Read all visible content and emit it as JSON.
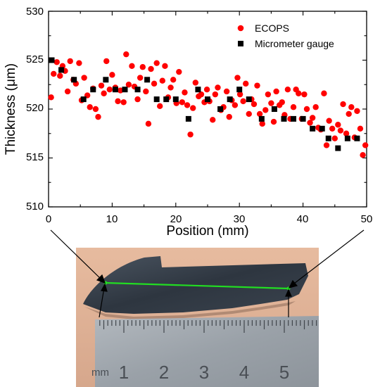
{
  "chart_data": {
    "type": "scatter",
    "xlabel": "Position (mm)",
    "ylabel": "Thickness (μm)",
    "xlim": [
      0,
      50
    ],
    "ylim": [
      510,
      530
    ],
    "xticks": [
      "0",
      "10",
      "20",
      "30",
      "40",
      "50"
    ],
    "yticks": [
      "510",
      "515",
      "520",
      "525",
      "530"
    ],
    "grid": false,
    "legend_position": "top-right",
    "series": [
      {
        "name": "ECOPS",
        "marker": "circle",
        "color": "#ff0000",
        "points": [
          [
            0.4,
            521.2
          ],
          [
            0.8,
            523.6
          ],
          [
            1.3,
            524.8
          ],
          [
            1.8,
            523.4
          ],
          [
            2.2,
            524.4
          ],
          [
            2.6,
            523.9
          ],
          [
            3.0,
            521.8
          ],
          [
            3.4,
            524.9
          ],
          [
            3.9,
            523.0
          ],
          [
            4.3,
            522.6
          ],
          [
            4.8,
            524.7
          ],
          [
            5.2,
            520.9
          ],
          [
            5.6,
            523.2
          ],
          [
            6.1,
            521.4
          ],
          [
            6.5,
            520.2
          ],
          [
            7.0,
            522.1
          ],
          [
            7.4,
            520.0
          ],
          [
            7.8,
            519.2
          ],
          [
            8.3,
            522.4
          ],
          [
            8.7,
            521.6
          ],
          [
            9.1,
            524.9
          ],
          [
            9.6,
            522.0
          ],
          [
            10.0,
            523.5
          ],
          [
            10.5,
            522.2
          ],
          [
            10.9,
            520.8
          ],
          [
            11.3,
            521.9
          ],
          [
            11.8,
            520.7
          ],
          [
            12.2,
            525.6
          ],
          [
            12.6,
            522.5
          ],
          [
            13.1,
            524.4
          ],
          [
            13.5,
            522.3
          ],
          [
            14.0,
            521.0
          ],
          [
            14.4,
            523.2
          ],
          [
            14.8,
            524.3
          ],
          [
            15.3,
            521.8
          ],
          [
            15.7,
            518.5
          ],
          [
            16.1,
            524.1
          ],
          [
            16.6,
            522.6
          ],
          [
            17.0,
            524.7
          ],
          [
            17.5,
            520.3
          ],
          [
            17.9,
            522.9
          ],
          [
            18.3,
            524.4
          ],
          [
            18.8,
            521.2
          ],
          [
            19.2,
            522.2
          ],
          [
            19.6,
            523.0
          ],
          [
            20.1,
            520.6
          ],
          [
            20.5,
            523.8
          ],
          [
            21.0,
            520.7
          ],
          [
            21.4,
            521.7
          ],
          [
            21.8,
            520.4
          ],
          [
            22.3,
            517.4
          ],
          [
            22.7,
            520.1
          ],
          [
            23.1,
            522.7
          ],
          [
            23.6,
            521.3
          ],
          [
            24.0,
            521.5
          ],
          [
            24.5,
            520.7
          ],
          [
            24.9,
            522.0
          ],
          [
            25.3,
            520.8
          ],
          [
            25.8,
            518.9
          ],
          [
            26.2,
            521.5
          ],
          [
            26.6,
            522.2
          ],
          [
            27.1,
            519.9
          ],
          [
            27.5,
            520.2
          ],
          [
            28.0,
            521.8
          ],
          [
            28.4,
            519.2
          ],
          [
            28.8,
            520.9
          ],
          [
            29.3,
            520.4
          ],
          [
            29.7,
            523.2
          ],
          [
            30.1,
            521.5
          ],
          [
            30.6,
            520.8
          ],
          [
            31.0,
            522.6
          ],
          [
            31.5,
            519.5
          ],
          [
            31.9,
            521.0
          ],
          [
            32.3,
            520.5
          ],
          [
            32.8,
            522.4
          ],
          [
            33.2,
            519.5
          ],
          [
            33.6,
            518.5
          ],
          [
            34.1,
            519.9
          ],
          [
            34.5,
            521.5
          ],
          [
            35.0,
            520.6
          ],
          [
            35.4,
            518.7
          ],
          [
            35.8,
            521.8
          ],
          [
            36.3,
            520.4
          ],
          [
            36.7,
            520.7
          ],
          [
            37.1,
            519.4
          ],
          [
            37.6,
            522.0
          ],
          [
            38.0,
            519.0
          ],
          [
            38.5,
            520.2
          ],
          [
            38.9,
            522.0
          ],
          [
            39.3,
            521.6
          ],
          [
            39.8,
            519.0
          ],
          [
            40.2,
            521.5
          ],
          [
            40.6,
            520.0
          ],
          [
            41.1,
            518.6
          ],
          [
            41.5,
            519.1
          ],
          [
            42.0,
            520.2
          ],
          [
            42.4,
            518.1
          ],
          [
            42.8,
            517.9
          ],
          [
            43.3,
            521.6
          ],
          [
            43.7,
            516.3
          ],
          [
            44.1,
            518.8
          ],
          [
            44.6,
            518.0
          ],
          [
            45.0,
            517.0
          ],
          [
            45.5,
            518.4
          ],
          [
            45.9,
            517.8
          ],
          [
            46.3,
            520.5
          ],
          [
            46.8,
            517.5
          ],
          [
            47.2,
            519.5
          ],
          [
            47.6,
            520.2
          ],
          [
            48.1,
            517.1
          ],
          [
            48.5,
            519.8
          ],
          [
            49.0,
            518.0
          ],
          [
            49.4,
            515.3
          ],
          [
            49.8,
            516.3
          ]
        ]
      },
      {
        "name": "Micrometer gauge",
        "marker": "square",
        "color": "#000000",
        "points": [
          [
            0.5,
            525.0
          ],
          [
            2.0,
            524.0
          ],
          [
            4.0,
            523.0
          ],
          [
            5.5,
            521.0
          ],
          [
            7.0,
            522.0
          ],
          [
            9.0,
            523.0
          ],
          [
            10.5,
            522.0
          ],
          [
            12.0,
            522.0
          ],
          [
            14.0,
            522.0
          ],
          [
            15.5,
            523.0
          ],
          [
            17.0,
            521.0
          ],
          [
            18.5,
            521.0
          ],
          [
            20.0,
            521.0
          ],
          [
            22.0,
            519.0
          ],
          [
            23.5,
            522.0
          ],
          [
            25.0,
            521.0
          ],
          [
            27.0,
            520.0
          ],
          [
            28.5,
            521.0
          ],
          [
            30.0,
            522.0
          ],
          [
            31.5,
            521.0
          ],
          [
            33.5,
            519.0
          ],
          [
            35.5,
            520.0
          ],
          [
            37.0,
            519.0
          ],
          [
            38.5,
            519.0
          ],
          [
            40.0,
            519.0
          ],
          [
            41.5,
            518.0
          ],
          [
            43.0,
            518.0
          ],
          [
            44.0,
            517.0
          ],
          [
            45.5,
            516.0
          ],
          [
            47.0,
            517.0
          ],
          [
            48.5,
            517.0
          ]
        ]
      }
    ]
  },
  "photo": {
    "ruler_unit": "mm",
    "ruler_numbers": [
      "1",
      "2",
      "3",
      "4",
      "5"
    ],
    "line_color": "#22dd22",
    "background_color": "#e2b498",
    "sample_color": "#2e3640",
    "ruler_color": "#9ea5ad"
  }
}
